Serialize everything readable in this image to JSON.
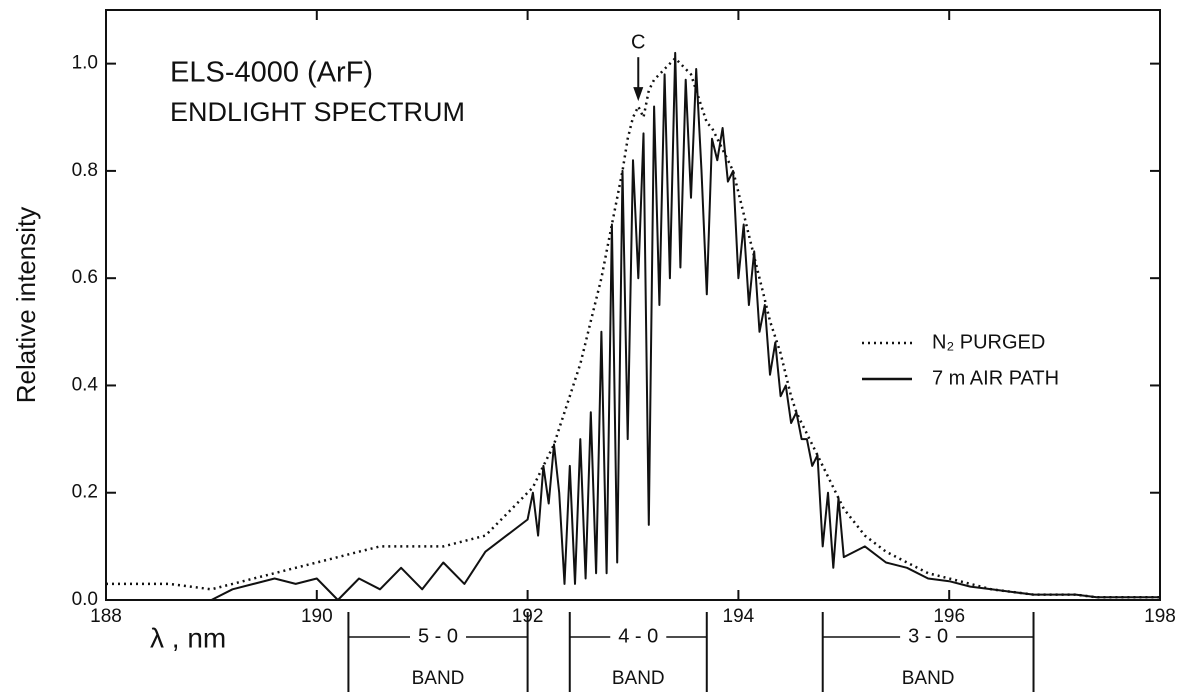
{
  "chart_data": {
    "type": "line",
    "title": "ELS-4000  (ArF)",
    "subtitle": "ENDLIGHT SPECTRUM",
    "x_label": "λ , nm",
    "y_label": "Relative  intensity",
    "xlim": [
      188,
      198
    ],
    "ylim": [
      0,
      1.1
    ],
    "xticks": [
      188,
      190,
      192,
      194,
      196,
      198
    ],
    "yticks": [
      {
        "value": 0,
        "label": "0.0"
      },
      0.2,
      0.4,
      0.6,
      0.8,
      {
        "value": 1,
        "label": "1.0"
      }
    ],
    "legend": "right",
    "x": [
      188,
      188.2,
      188.4,
      188.6,
      188.8,
      189,
      189.2,
      189.4,
      189.6,
      189.8,
      190,
      190.2,
      190.4,
      190.6,
      190.8,
      191,
      191.2,
      191.4,
      191.6,
      191.8,
      192,
      192.05,
      192.1,
      192.15,
      192.2,
      192.25,
      192.3,
      192.35,
      192.4,
      192.45,
      192.5,
      192.55,
      192.6,
      192.65,
      192.7,
      192.75,
      192.8,
      192.85,
      192.9,
      192.95,
      193,
      193.05,
      193.1,
      193.15,
      193.2,
      193.25,
      193.3,
      193.35,
      193.4,
      193.45,
      193.5,
      193.55,
      193.6,
      193.65,
      193.7,
      193.75,
      193.8,
      193.85,
      193.9,
      193.95,
      194,
      194.05,
      194.1,
      194.15,
      194.2,
      194.25,
      194.3,
      194.35,
      194.4,
      194.45,
      194.5,
      194.55,
      194.6,
      194.65,
      194.7,
      194.75,
      194.8,
      194.85,
      194.9,
      194.95,
      195,
      195.2,
      195.4,
      195.6,
      195.8,
      196,
      196.2,
      196.4,
      196.6,
      196.8,
      197,
      197.2,
      197.4,
      197.6,
      197.8,
      198
    ],
    "series": [
      {
        "name": "N₂ PURGED",
        "color": "#111111",
        "style": "dotted",
        "values": [
          0.03,
          0.03,
          0.03,
          0.03,
          0.025,
          0.02,
          0.03,
          0.04,
          0.05,
          0.06,
          0.07,
          0.08,
          0.09,
          0.1,
          0.1,
          0.1,
          0.1,
          0.11,
          0.12,
          0.16,
          0.2,
          0.21,
          0.23,
          0.25,
          0.27,
          0.29,
          0.32,
          0.35,
          0.38,
          0.41,
          0.44,
          0.48,
          0.52,
          0.56,
          0.6,
          0.65,
          0.7,
          0.75,
          0.8,
          0.86,
          0.9,
          0.92,
          0.9,
          0.95,
          0.97,
          0.98,
          0.99,
          1.0,
          1.01,
          1.0,
          0.99,
          0.98,
          0.95,
          0.92,
          0.89,
          0.88,
          0.86,
          0.84,
          0.82,
          0.8,
          0.76,
          0.72,
          0.68,
          0.64,
          0.6,
          0.56,
          0.52,
          0.49,
          0.46,
          0.42,
          0.38,
          0.35,
          0.33,
          0.31,
          0.29,
          0.27,
          0.25,
          0.23,
          0.21,
          0.19,
          0.17,
          0.12,
          0.09,
          0.07,
          0.05,
          0.04,
          0.03,
          0.02,
          0.015,
          0.01,
          0.01,
          0.01,
          0.005,
          0.005,
          0.005,
          0.005
        ]
      },
      {
        "name": "7 m AIR PATH",
        "color": "#111111",
        "style": "solid",
        "values": [
          null,
          null,
          null,
          null,
          null,
          0.0,
          0.02,
          0.03,
          0.04,
          0.03,
          0.04,
          0.0,
          0.04,
          0.02,
          0.06,
          0.02,
          0.07,
          0.03,
          0.09,
          0.12,
          0.15,
          0.2,
          0.12,
          0.25,
          0.18,
          0.29,
          0.2,
          0.03,
          0.25,
          0.03,
          0.3,
          0.04,
          0.35,
          0.05,
          0.5,
          0.05,
          0.7,
          0.07,
          0.8,
          0.3,
          0.82,
          0.6,
          0.87,
          0.14,
          0.92,
          0.55,
          0.98,
          0.6,
          1.02,
          0.62,
          0.97,
          0.75,
          0.99,
          0.8,
          0.57,
          0.86,
          0.82,
          0.88,
          0.78,
          0.8,
          0.6,
          0.7,
          0.55,
          0.65,
          0.5,
          0.55,
          0.42,
          0.48,
          0.38,
          0.4,
          0.33,
          0.35,
          0.3,
          0.3,
          0.25,
          0.27,
          0.1,
          0.2,
          0.06,
          0.19,
          0.08,
          0.1,
          0.07,
          0.06,
          0.04,
          0.035,
          0.025,
          0.02,
          0.015,
          0.01,
          0.01,
          0.01,
          0.005,
          0.005,
          0.005,
          0.005
        ]
      }
    ],
    "annotations": [
      {
        "text": "C",
        "x": 193.05,
        "y": 0.93
      }
    ],
    "bands": [
      {
        "label": "5 - 0",
        "sublabel": "BAND",
        "start": 190.3,
        "end": 192.0
      },
      {
        "label": "4 - 0",
        "sublabel": "BAND",
        "start": 192.4,
        "end": 193.7
      },
      {
        "label": "3 - 0",
        "sublabel": "BAND",
        "start": 194.8,
        "end": 196.8
      }
    ]
  }
}
